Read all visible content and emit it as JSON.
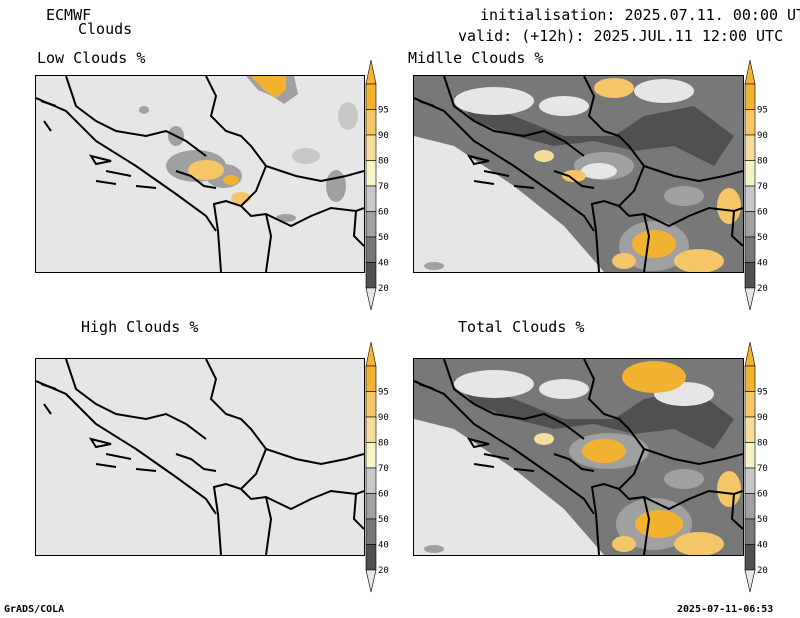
{
  "header": {
    "model": "ECMWF",
    "product": "Clouds",
    "initialisation": "initialisation: 2025.07.11. 00:00 UTC",
    "valid": "valid: (+12h): 2025.JUL.11 12:00 UTC"
  },
  "panels": {
    "low": {
      "title": "Low Clouds %"
    },
    "middle": {
      "title": "Midlle Clouds %"
    },
    "high": {
      "title": "High Clouds %"
    },
    "total": {
      "title": "Total Clouds %"
    }
  },
  "colorbar": {
    "levels": [
      "95",
      "90",
      "80",
      "70",
      "60",
      "50",
      "40",
      "20"
    ],
    "colors": {
      "95": "#f2b232",
      "90": "#f5c668",
      "80": "#f5dd9c",
      "70": "#f5f5c8",
      "60": "#c8c8c8",
      "50": "#a0a0a0",
      "40": "#787878",
      "20": "#505050",
      "below": "#e6e6e6"
    }
  },
  "footer": {
    "left": "GrADS/COLA",
    "right": "2025-07-11-06:53"
  }
}
